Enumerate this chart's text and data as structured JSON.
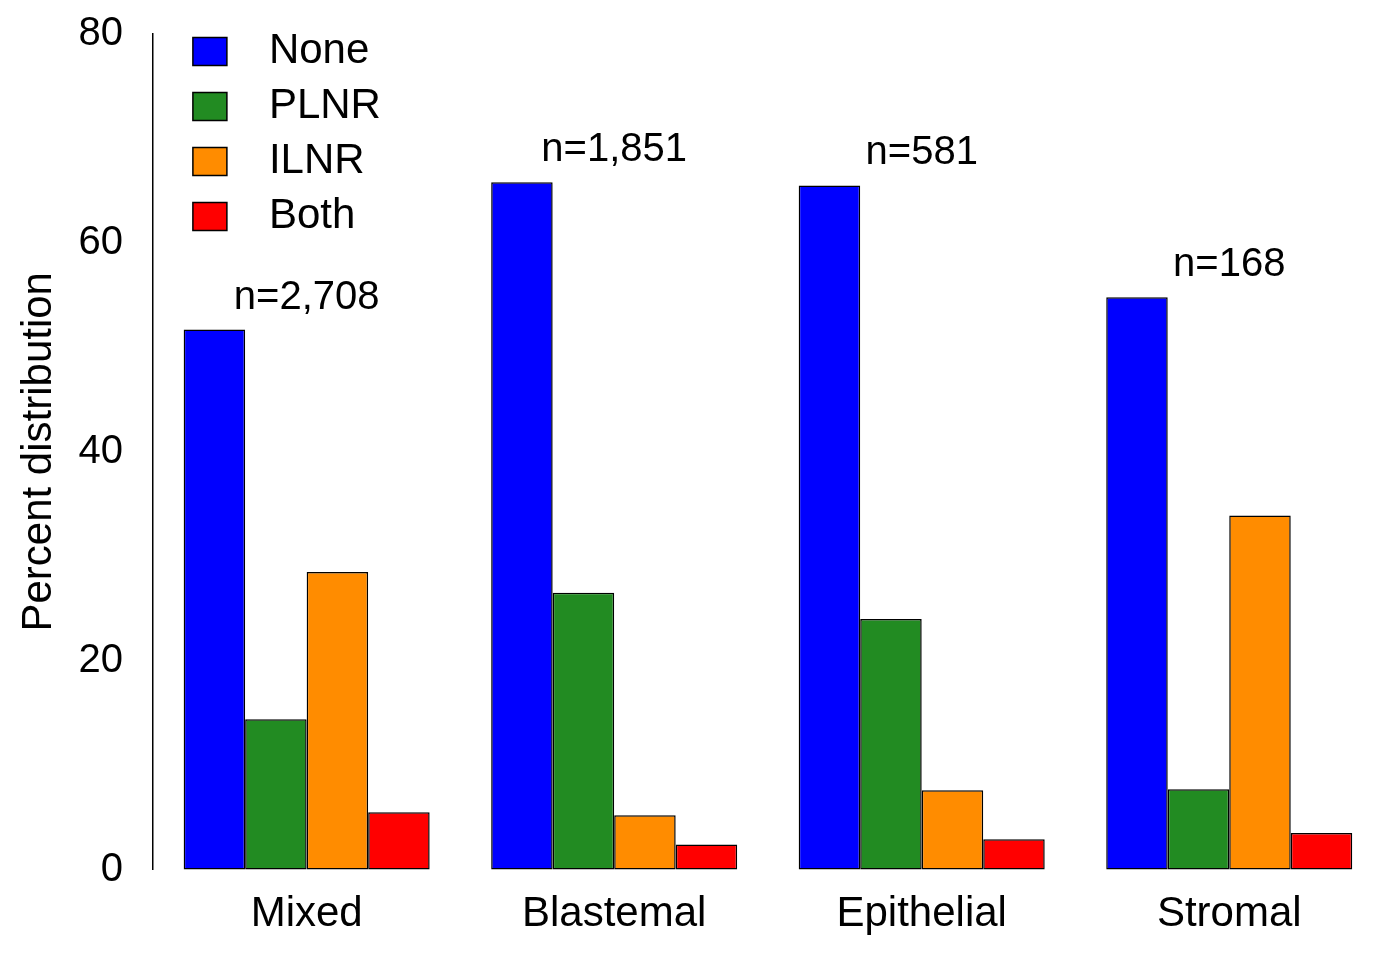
{
  "chart_data": {
    "type": "bar",
    "ylabel": "Percent distribution",
    "categories": [
      "Mixed",
      "Blastemal",
      "Epithelial",
      "Stromal"
    ],
    "series": [
      {
        "name": "None",
        "color": "#0000ff",
        "values": [
          51.7,
          65.8,
          65.5,
          54.8
        ]
      },
      {
        "name": "PLNR",
        "color": "#228b22",
        "values": [
          14.4,
          26.5,
          24.0,
          7.7
        ]
      },
      {
        "name": "ILNR",
        "color": "#ff8c00",
        "values": [
          28.5,
          5.2,
          7.6,
          33.9
        ]
      },
      {
        "name": "Both",
        "color": "#ff0000",
        "values": [
          5.5,
          2.4,
          2.9,
          3.5
        ]
      }
    ],
    "ylim": [
      0,
      80
    ],
    "yticks": [
      0,
      20,
      40,
      60,
      80
    ],
    "grid": false,
    "legend": "top left",
    "annotations": [
      "n=2,708",
      "n=1,851",
      "n=581",
      "n=168"
    ]
  }
}
